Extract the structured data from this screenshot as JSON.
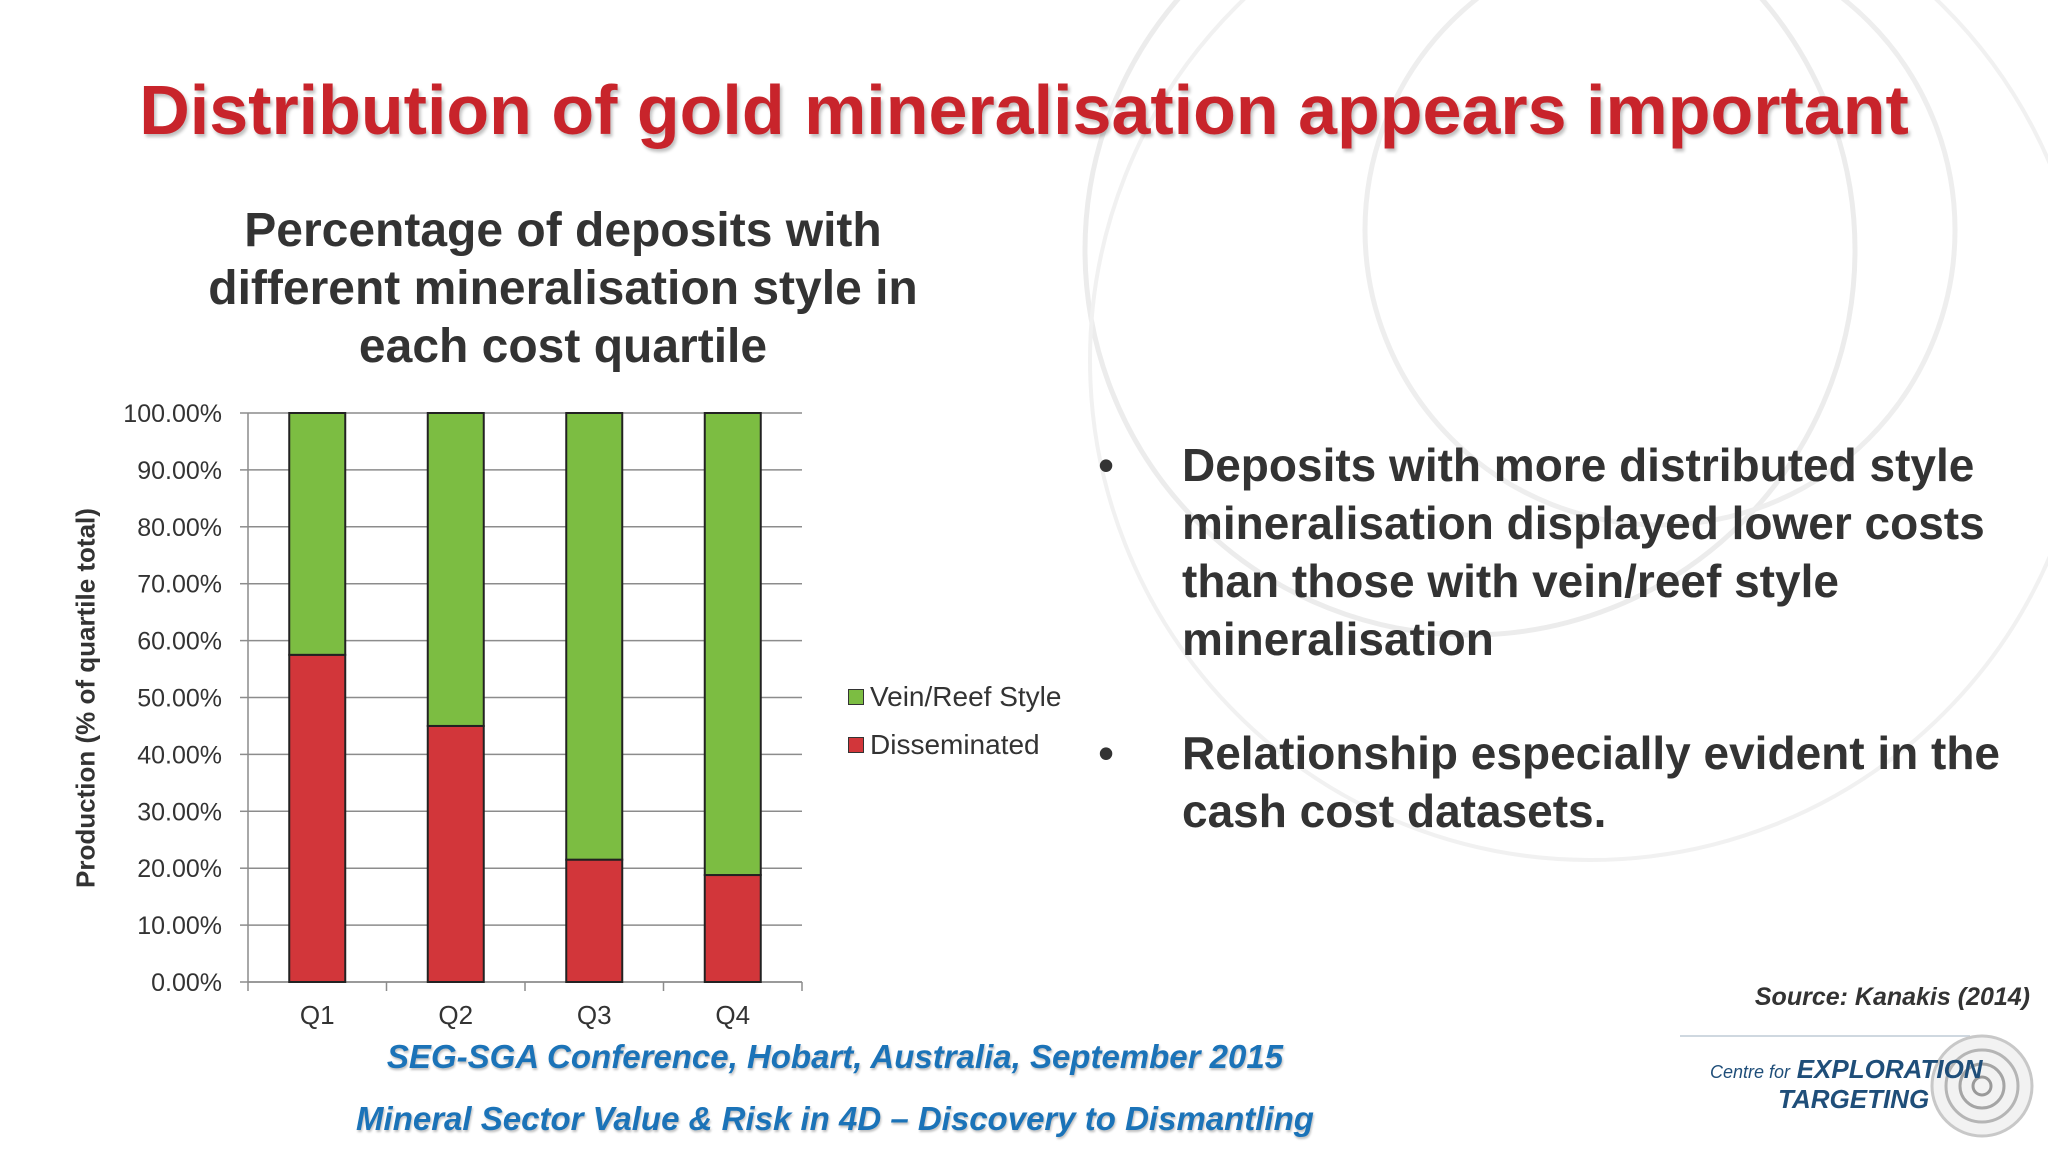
{
  "slide": {
    "title": "Distribution of gold mineralisation appears important",
    "bullets": [
      "Deposits with more distributed  style mineralisation displayed lower costs than those with vein/reef style mineralisation",
      "Relationship especially evident in the cash cost datasets."
    ],
    "bullet_symbol": "•",
    "source": "Source: Kanakis (2014)",
    "footer_line1": "SEG-SGA Conference, Hobart, Australia, September 2015",
    "footer_line2": "Mineral Sector Value & Risk in 4D – Discovery to Dismantling",
    "logo": {
      "line1_prefix": "Centre for",
      "line1_main": "EXPLORATION",
      "line2": "TARGETING"
    },
    "colors": {
      "title": "#c8242b",
      "footer": "#1b73b8",
      "disseminated": "#d2363a",
      "vein_reef": "#7cbd42"
    }
  },
  "chart_data": {
    "type": "bar",
    "stacked": true,
    "title": "Percentage of deposits with different mineralisation style in each cost quartile",
    "title_lines": [
      "Percentage of deposits with",
      "different mineralisation style in",
      "each cost quartile"
    ],
    "xlabel": "",
    "ylabel": "Production (% of quartile total)",
    "categories": [
      "Q1",
      "Q2",
      "Q3",
      "Q4"
    ],
    "ylim": [
      0,
      100
    ],
    "yticks": [
      "0.00%",
      "10.00%",
      "20.00%",
      "30.00%",
      "40.00%",
      "50.00%",
      "60.00%",
      "70.00%",
      "80.00%",
      "90.00%",
      "100.00%"
    ],
    "series": [
      {
        "name": "Disseminated",
        "values": [
          57.5,
          45.0,
          21.5,
          18.8
        ],
        "color": "#d2363a"
      },
      {
        "name": "Vein/Reef Style",
        "values": [
          42.5,
          55.0,
          78.5,
          81.2
        ],
        "color": "#7cbd42"
      }
    ],
    "legend_order": [
      "Vein/Reef Style",
      "Disseminated"
    ],
    "legend_position": "right",
    "grid": true
  }
}
